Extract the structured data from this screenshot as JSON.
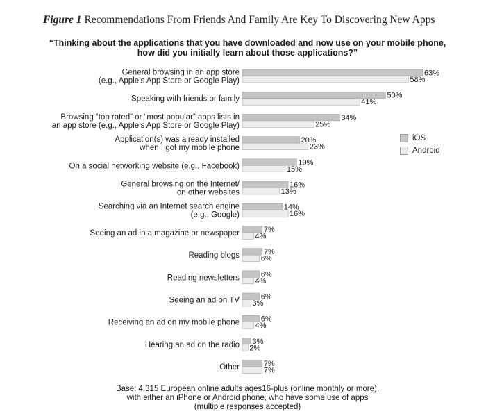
{
  "figure": {
    "label": "Figure 1",
    "title": "Recommendations From Friends And Family Are Key To Discovering New Apps"
  },
  "question": [
    "“Thinking about the applications that you have downloaded and now use on your mobile phone,",
    "how did you initially learn about those applications?”"
  ],
  "footnote": [
    "Base: 4,315 European online adults ages16-plus (online monthly or more),",
    "with either an iPhone or Android phone, who have some use of apps",
    "(multiple responses accepted)"
  ],
  "colors": {
    "ios": "#c4c4c4",
    "android": "#ececec",
    "bar_border": "#9a9a9a"
  },
  "chart_data": {
    "type": "bar",
    "orientation": "horizontal",
    "value_suffix": "%",
    "legend_position": "right",
    "xlim": [
      0,
      63
    ],
    "categories": [
      [
        "General browsing in an app store",
        "(e.g., Apple’s App Store or Google Play)"
      ],
      [
        "Speaking with friends or family"
      ],
      [
        "Browsing “top rated” or “most popular” apps lists in",
        "an app store (e.g., Apple’s App Store or Google Play)"
      ],
      [
        "Application(s) was already installed",
        "when I got my mobile phone"
      ],
      [
        "On a social networking website (e.g., Facebook)"
      ],
      [
        "General browsing on the Internet/",
        "on other websites"
      ],
      [
        "Searching via an Internet search engine",
        "(e.g., Google)"
      ],
      [
        "Seeing an ad in a magazine or newspaper"
      ],
      [
        "Reading blogs"
      ],
      [
        "Reading newsletters"
      ],
      [
        "Seeing an ad on TV"
      ],
      [
        "Receiving an ad on my mobile phone"
      ],
      [
        "Hearing an ad on the radio"
      ],
      [
        "Other"
      ]
    ],
    "series": [
      {
        "name": "iOS",
        "values": [
          63,
          50,
          34,
          20,
          19,
          16,
          14,
          7,
          7,
          6,
          6,
          6,
          3,
          7
        ]
      },
      {
        "name": "Android",
        "values": [
          58,
          41,
          25,
          23,
          15,
          13,
          16,
          4,
          6,
          4,
          3,
          4,
          2,
          7
        ]
      }
    ]
  }
}
